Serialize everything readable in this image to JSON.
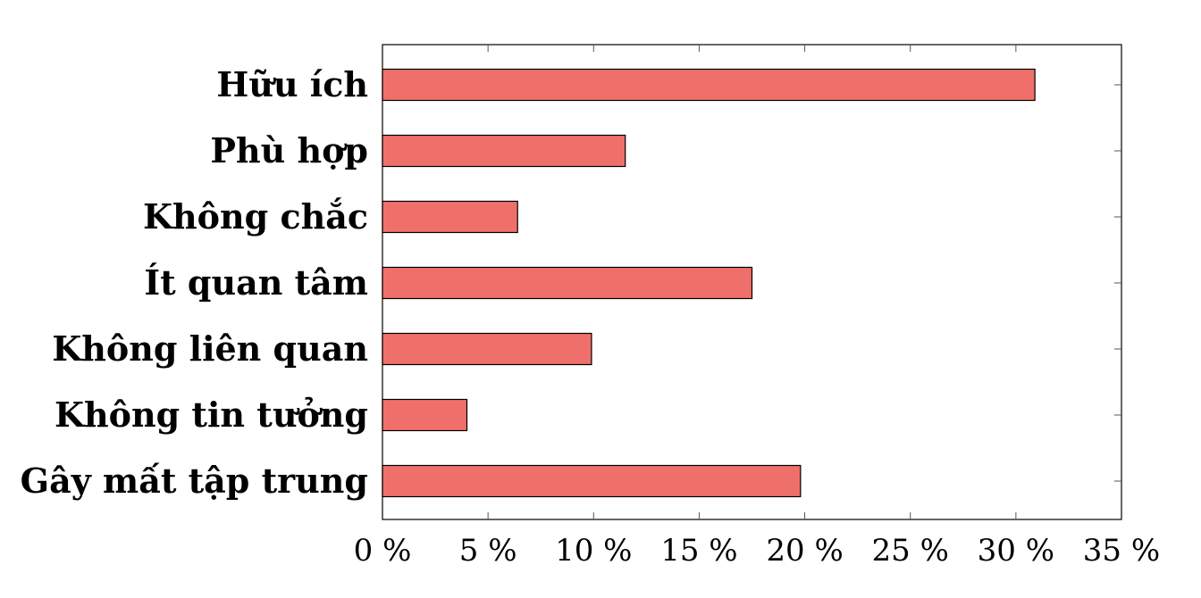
{
  "chart_data": {
    "type": "bar",
    "orientation": "horizontal",
    "categories": [
      "Hữu ích",
      "Phù hợp",
      "Không chắc",
      "Ít quan tâm",
      "Không liên quan",
      "Không tin tưởng",
      "Gây mất tập trung"
    ],
    "values": [
      30.9,
      11.5,
      6.4,
      17.5,
      9.9,
      4.0,
      19.8
    ],
    "xlim": [
      0,
      35
    ],
    "ticks": [
      0,
      5,
      10,
      15,
      20,
      25,
      30,
      35
    ],
    "tick_labels": [
      "0 %",
      "5 %",
      "10 %",
      "15 %",
      "20 %",
      "25 %",
      "30 %",
      "35 %"
    ],
    "title": "",
    "xlabel": "",
    "ylabel": "",
    "grid": false,
    "bar_color": "#ef706a",
    "bar_edge_color": "#000000"
  }
}
